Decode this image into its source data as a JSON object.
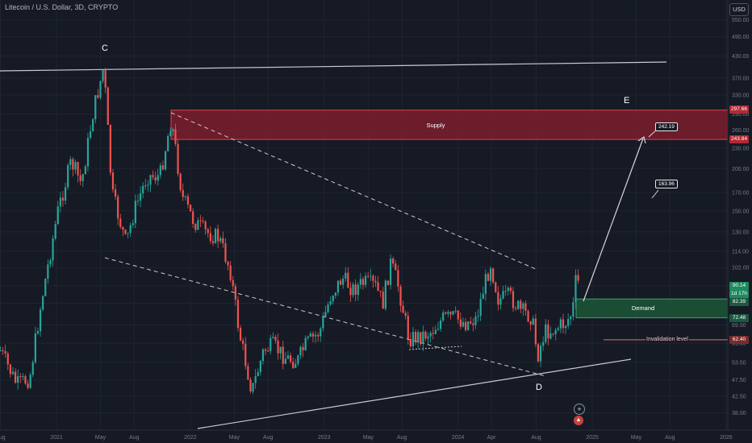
{
  "header": {
    "title": "Litecoin / U.S. Dollar, 3D, CRYPTO",
    "currency_label": "USD"
  },
  "chart_data": {
    "type": "candlestick",
    "y_scale": "log",
    "y_tick_labels": [
      "550.00",
      "490.00",
      "430.00",
      "370.00",
      "330.00",
      "290.00",
      "260.00",
      "230.00",
      "200.00",
      "170.00",
      "150.00",
      "130.00",
      "114.00",
      "102.00",
      "90.00",
      "80.00",
      "69.00",
      "61.00",
      "53.50",
      "47.50",
      "42.50",
      "38.00"
    ],
    "x_tick_labels": [
      "Aug",
      "2021",
      "May",
      "Aug",
      "2022",
      "May",
      "Aug",
      "2023",
      "May",
      "Aug",
      "2024",
      "Apr",
      "Aug",
      "2025",
      "May",
      "Aug",
      "2026"
    ],
    "price_path": [
      {
        "date": "2020-08-01",
        "close": 58
      },
      {
        "date": "2020-09-15",
        "close": 46
      },
      {
        "date": "2020-10-20",
        "close": 48
      },
      {
        "date": "2020-11-20",
        "close": 80
      },
      {
        "date": "2021-01-05",
        "close": 150
      },
      {
        "date": "2021-02-10",
        "close": 210
      },
      {
        "date": "2021-03-10",
        "close": 180
      },
      {
        "date": "2021-04-10",
        "close": 290
      },
      {
        "date": "2021-05-10",
        "close": 400
      },
      {
        "date": "2021-06-01",
        "close": 170
      },
      {
        "date": "2021-07-10",
        "close": 120
      },
      {
        "date": "2021-08-01",
        "close": 150
      },
      {
        "date": "2021-09-05",
        "close": 190
      },
      {
        "date": "2021-10-10",
        "close": 190
      },
      {
        "date": "2021-11-10",
        "close": 280
      },
      {
        "date": "2021-12-10",
        "close": 165
      },
      {
        "date": "2022-01-10",
        "close": 140
      },
      {
        "date": "2022-02-10",
        "close": 130
      },
      {
        "date": "2022-03-20",
        "close": 125
      },
      {
        "date": "2022-04-20",
        "close": 100
      },
      {
        "date": "2022-05-15",
        "close": 65
      },
      {
        "date": "2022-06-18",
        "close": 44
      },
      {
        "date": "2022-07-20",
        "close": 58
      },
      {
        "date": "2022-08-15",
        "close": 60
      },
      {
        "date": "2022-09-20",
        "close": 55
      },
      {
        "date": "2022-10-20",
        "close": 54
      },
      {
        "date": "2022-11-10",
        "close": 60
      },
      {
        "date": "2022-12-20",
        "close": 66
      },
      {
        "date": "2023-01-20",
        "close": 85
      },
      {
        "date": "2023-02-20",
        "close": 95
      },
      {
        "date": "2023-03-20",
        "close": 88
      },
      {
        "date": "2023-04-20",
        "close": 92
      },
      {
        "date": "2023-05-20",
        "close": 90
      },
      {
        "date": "2023-06-10",
        "close": 80
      },
      {
        "date": "2023-07-01",
        "close": 105
      },
      {
        "date": "2023-07-20",
        "close": 92
      },
      {
        "date": "2023-08-20",
        "close": 63
      },
      {
        "date": "2023-09-20",
        "close": 64
      },
      {
        "date": "2023-10-20",
        "close": 66
      },
      {
        "date": "2023-11-20",
        "close": 72
      },
      {
        "date": "2023-12-20",
        "close": 73
      },
      {
        "date": "2024-01-20",
        "close": 70
      },
      {
        "date": "2024-02-20",
        "close": 72
      },
      {
        "date": "2024-03-10",
        "close": 88
      },
      {
        "date": "2024-03-30",
        "close": 105
      },
      {
        "date": "2024-04-20",
        "close": 82
      },
      {
        "date": "2024-05-20",
        "close": 84
      },
      {
        "date": "2024-06-20",
        "close": 76
      },
      {
        "date": "2024-07-20",
        "close": 73
      },
      {
        "date": "2024-08-05",
        "close": 56
      },
      {
        "date": "2024-08-25",
        "close": 66
      },
      {
        "date": "2024-09-20",
        "close": 67
      },
      {
        "date": "2024-10-20",
        "close": 70
      },
      {
        "date": "2024-11-08",
        "close": 75
      },
      {
        "date": "2024-11-18",
        "close": 95
      },
      {
        "date": "2024-11-28",
        "close": 90
      }
    ],
    "zones": [
      {
        "label": "Supply",
        "top": 297.66,
        "bottom": 243.84,
        "color": "#8b1e2d"
      },
      {
        "label": "Demand",
        "top": 82.39,
        "bottom": 72.48,
        "color": "#1d5a3a"
      }
    ],
    "invalidation": {
      "label": "Invalidation level",
      "price": 62.4
    },
    "wave_labels": [
      "C",
      "D",
      "E"
    ],
    "targets": [
      "163.96",
      "242.19"
    ],
    "price_tags": [
      {
        "text": "297.66",
        "color": "#b22833"
      },
      {
        "text": "243.84",
        "color": "#b22833"
      },
      {
        "text": "90.14",
        "color": "#1f8a5e"
      },
      {
        "text": "1d 17h",
        "color": "#1f8a5e"
      },
      {
        "text": "82.39",
        "color": "#1a5a40"
      },
      {
        "text": "72.48",
        "color": "#1a5a40"
      },
      {
        "text": "62.40",
        "color": "#7a2a2a"
      }
    ]
  }
}
